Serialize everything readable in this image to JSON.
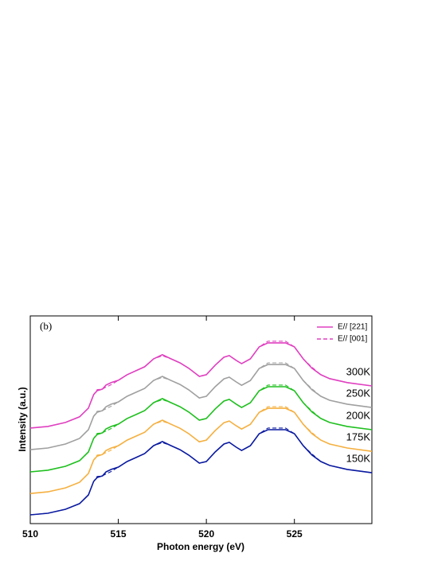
{
  "chart_data": {
    "type": "line",
    "panel_label": "(b)",
    "xlabel": "Photon energy (eV)",
    "ylabel": "Intensity (a.u.)",
    "xlim": [
      510,
      529.4
    ],
    "ylim": [
      0,
      10
    ],
    "xticks": [
      510,
      515,
      520,
      525
    ],
    "legend_position": "upper right",
    "legend": [
      {
        "label": "E// [221]",
        "style": "solid",
        "color": "#e040c0"
      },
      {
        "label": "E// [001]",
        "style": "dashed",
        "color": "#e040c0"
      }
    ],
    "x": [
      510,
      511,
      512,
      512.8,
      513.3,
      513.6,
      513.8,
      514.1,
      514.3,
      514.6,
      515,
      515.5,
      516,
      516.5,
      517,
      517.5,
      518,
      518.5,
      519,
      519.6,
      520,
      520.5,
      521,
      521.3,
      521.7,
      522,
      522.5,
      523,
      523.5,
      524,
      524.5,
      525,
      525.5,
      526,
      526.5,
      527,
      528,
      529.4
    ],
    "series": [
      {
        "name": "300K",
        "color": "#e040c0",
        "solid": [
          4.6,
          4.68,
          4.87,
          5.14,
          5.56,
          6.21,
          6.4,
          6.48,
          6.67,
          6.79,
          6.9,
          7.17,
          7.36,
          7.55,
          7.93,
          8.13,
          7.93,
          7.74,
          7.48,
          7.09,
          7.17,
          7.63,
          8.01,
          8.09,
          7.86,
          7.7,
          7.93,
          8.51,
          8.7,
          8.7,
          8.7,
          8.51,
          7.93,
          7.48,
          7.17,
          6.98,
          6.79,
          6.63
        ],
        "dashed": [
          4.6,
          4.68,
          4.87,
          5.14,
          5.56,
          6.21,
          6.45,
          6.48,
          6.57,
          6.69,
          6.9,
          7.17,
          7.36,
          7.55,
          7.93,
          8.08,
          7.93,
          7.74,
          7.48,
          7.09,
          7.17,
          7.63,
          8.01,
          8.09,
          7.86,
          7.7,
          7.93,
          8.51,
          8.78,
          8.78,
          8.78,
          8.51,
          7.93,
          7.53,
          7.17,
          6.98,
          6.79,
          6.63
        ]
      },
      {
        "name": "250K",
        "color": "#a0a0a0",
        "solid": [
          3.56,
          3.64,
          3.83,
          4.1,
          4.52,
          5.17,
          5.36,
          5.44,
          5.63,
          5.75,
          5.86,
          6.13,
          6.32,
          6.51,
          6.89,
          7.09,
          6.89,
          6.7,
          6.44,
          6.05,
          6.13,
          6.59,
          6.97,
          7.05,
          6.82,
          6.66,
          6.89,
          7.47,
          7.66,
          7.66,
          7.66,
          7.47,
          6.89,
          6.44,
          6.13,
          5.94,
          5.75,
          5.59
        ],
        "dashed": [
          3.56,
          3.64,
          3.83,
          4.1,
          4.52,
          5.17,
          5.41,
          5.44,
          5.53,
          5.65,
          5.86,
          6.13,
          6.32,
          6.51,
          6.89,
          7.04,
          6.89,
          6.7,
          6.44,
          6.05,
          6.13,
          6.59,
          6.97,
          7.05,
          6.82,
          6.66,
          6.89,
          7.47,
          7.74,
          7.74,
          7.74,
          7.47,
          6.89,
          6.49,
          6.13,
          5.94,
          5.75,
          5.59
        ]
      },
      {
        "name": "200K",
        "color": "#20c020",
        "solid": [
          2.49,
          2.57,
          2.76,
          3.03,
          3.45,
          4.1,
          4.29,
          4.37,
          4.56,
          4.68,
          4.79,
          5.06,
          5.25,
          5.44,
          5.82,
          6.02,
          5.82,
          5.63,
          5.37,
          4.98,
          5.06,
          5.52,
          5.9,
          5.98,
          5.75,
          5.59,
          5.82,
          6.4,
          6.59,
          6.59,
          6.59,
          6.4,
          5.82,
          5.37,
          5.06,
          4.87,
          4.68,
          4.52
        ],
        "dashed": [
          2.49,
          2.57,
          2.76,
          3.03,
          3.45,
          4.1,
          4.34,
          4.37,
          4.46,
          4.58,
          4.79,
          5.06,
          5.25,
          5.44,
          5.82,
          5.97,
          5.82,
          5.63,
          5.37,
          4.98,
          5.06,
          5.52,
          5.9,
          5.98,
          5.75,
          5.59,
          5.82,
          6.4,
          6.67,
          6.67,
          6.67,
          6.4,
          5.82,
          5.42,
          5.06,
          4.87,
          4.68,
          4.52
        ]
      },
      {
        "name": "175K",
        "color": "#f5b040",
        "solid": [
          1.45,
          1.53,
          1.72,
          1.99,
          2.41,
          3.06,
          3.25,
          3.33,
          3.52,
          3.64,
          3.75,
          4.02,
          4.21,
          4.4,
          4.78,
          4.98,
          4.78,
          4.59,
          4.33,
          3.94,
          4.02,
          4.48,
          4.86,
          4.94,
          4.71,
          4.55,
          4.78,
          5.36,
          5.55,
          5.55,
          5.55,
          5.36,
          4.78,
          4.33,
          4.02,
          3.83,
          3.64,
          3.48
        ],
        "dashed": [
          1.45,
          1.53,
          1.72,
          1.99,
          2.41,
          3.06,
          3.3,
          3.33,
          3.42,
          3.54,
          3.75,
          4.02,
          4.21,
          4.4,
          4.78,
          4.93,
          4.78,
          4.59,
          4.33,
          3.94,
          4.02,
          4.48,
          4.86,
          4.94,
          4.71,
          4.55,
          4.78,
          5.36,
          5.63,
          5.63,
          5.63,
          5.36,
          4.78,
          4.38,
          4.02,
          3.83,
          3.64,
          3.48
        ]
      },
      {
        "name": "150K",
        "color": "#0a1aa0",
        "solid": [
          0.42,
          0.5,
          0.69,
          0.96,
          1.38,
          2.03,
          2.22,
          2.3,
          2.49,
          2.61,
          2.72,
          2.99,
          3.18,
          3.37,
          3.75,
          3.95,
          3.75,
          3.56,
          3.3,
          2.91,
          2.99,
          3.45,
          3.83,
          3.91,
          3.68,
          3.52,
          3.75,
          4.33,
          4.52,
          4.52,
          4.52,
          4.33,
          3.75,
          3.3,
          2.99,
          2.8,
          2.61,
          2.45
        ],
        "dashed": [
          0.42,
          0.5,
          0.69,
          0.96,
          1.38,
          2.03,
          2.27,
          2.3,
          2.39,
          2.51,
          2.72,
          2.99,
          3.18,
          3.37,
          3.75,
          3.9,
          3.75,
          3.56,
          3.3,
          2.91,
          2.99,
          3.45,
          3.83,
          3.91,
          3.68,
          3.52,
          3.75,
          4.33,
          4.6,
          4.6,
          4.6,
          4.33,
          3.75,
          3.35,
          2.99,
          2.8,
          2.61,
          2.45
        ]
      }
    ]
  }
}
